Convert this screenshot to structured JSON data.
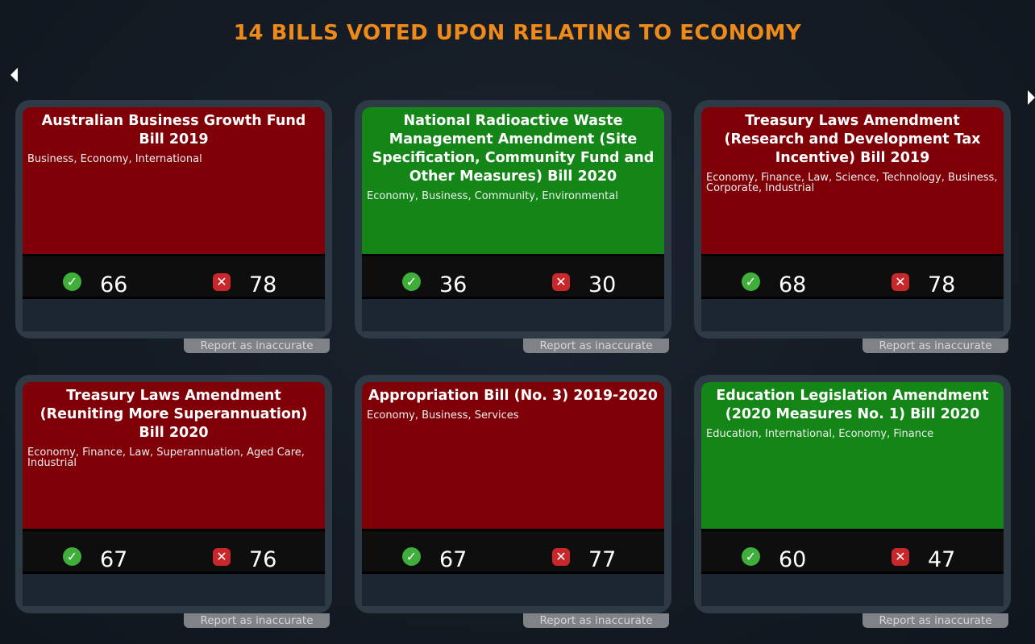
{
  "header": {
    "title": "14 BILLS VOTED UPON RELATING TO ECONOMY"
  },
  "report_label": "Report as inaccurate",
  "colors": {
    "title": "#ee8a1a",
    "failed": "#7f0006",
    "passed": "#138617"
  },
  "cards": [
    {
      "title": "Australian Business Growth Fund Bill 2019",
      "tags": "Business, Economy, International",
      "status": "failed",
      "ayes": "66",
      "noes": "78"
    },
    {
      "title": "National Radioactive Waste Management Amendment (Site Specification, Community Fund and Other Measures) Bill 2020",
      "tags": "Economy, Business, Community, Environmental",
      "status": "passed",
      "ayes": "36",
      "noes": "30"
    },
    {
      "title": "Treasury Laws Amendment (Research and Development Tax Incentive) Bill 2019",
      "tags": "Economy, Finance, Law, Science, Technology, Business, Corporate, Industrial",
      "status": "failed",
      "ayes": "68",
      "noes": "78"
    },
    {
      "title": "Treasury Laws Amendment (Reuniting More Superannuation) Bill 2020",
      "tags": "Economy, Finance, Law, Superannuation, Aged Care, Industrial",
      "status": "failed",
      "ayes": "67",
      "noes": "76"
    },
    {
      "title": "Appropriation Bill (No. 3) 2019-2020",
      "tags": "Economy, Business, Services",
      "status": "failed",
      "ayes": "67",
      "noes": "77"
    },
    {
      "title": "Education Legislation Amendment (2020 Measures No. 1) Bill 2020",
      "tags": "Education, International, Economy, Finance",
      "status": "passed",
      "ayes": "60",
      "noes": "47"
    }
  ]
}
